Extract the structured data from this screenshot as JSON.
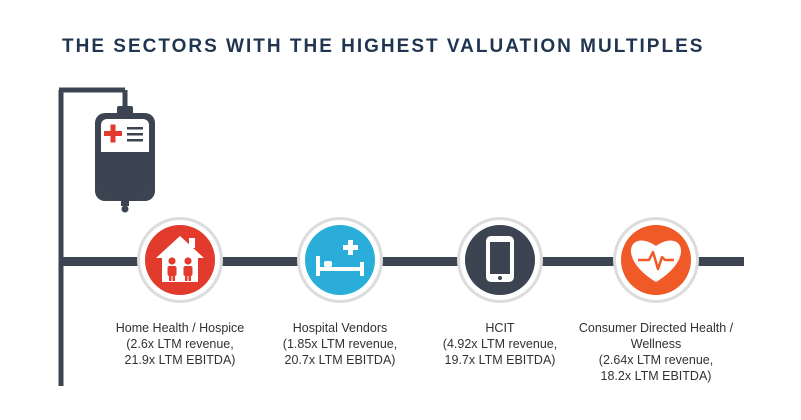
{
  "title": "THE SECTORS WITH THE HIGHEST VALUATION MULTIPLES",
  "colors": {
    "line": "#3c4452",
    "home_health": "#e23a2c",
    "hospital_vendors": "#2aaed9",
    "hcit": "#3c4452",
    "consumer_health": "#f05a26"
  },
  "sectors": [
    {
      "icon": "house-family-icon",
      "lines": [
        "Home Health / Hospice",
        "(2.6x LTM revenue,",
        "21.9x LTM EBITDA)"
      ]
    },
    {
      "icon": "hospital-bed-icon",
      "lines": [
        "Hospital Vendors",
        "(1.85x LTM revenue,",
        "20.7x LTM EBITDA)"
      ]
    },
    {
      "icon": "tablet-device-icon",
      "lines": [
        "HCIT",
        "(4.92x LTM revenue,",
        "19.7x LTM EBITDA)"
      ]
    },
    {
      "icon": "heart-pulse-icon",
      "lines": [
        "Consumer Directed Health /",
        "Wellness",
        "(2.64x LTM revenue,",
        "18.2x LTM EBITDA)"
      ]
    }
  ]
}
